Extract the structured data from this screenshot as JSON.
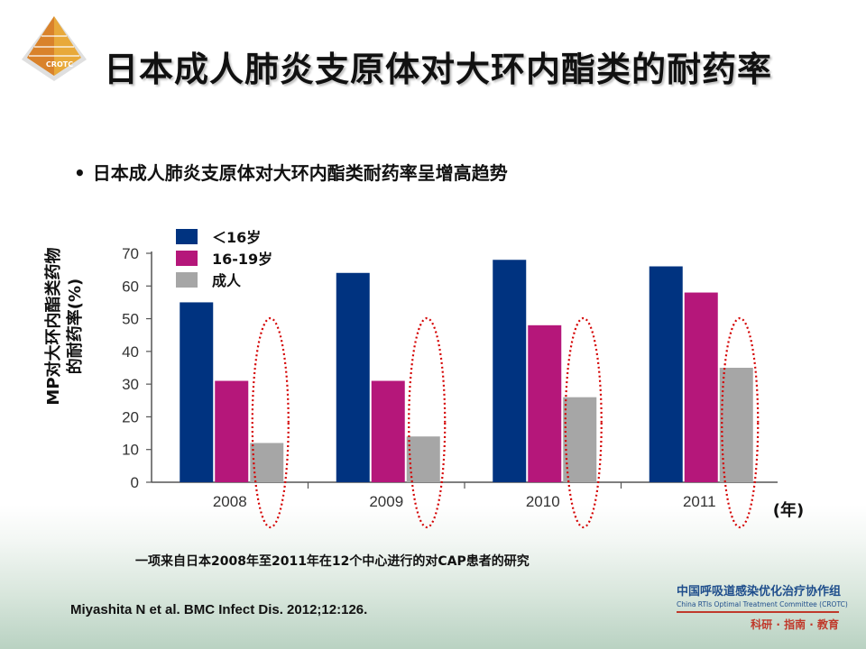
{
  "logo": {
    "text": "CROTC",
    "colors": [
      "#d9822b",
      "#e8a93a",
      "#8a6d3b",
      "#c9c9c9"
    ]
  },
  "title": "日本成人肺炎支原体对大环内酯类的耐药率",
  "bullet": {
    "symbol": "•",
    "text": "日本成人肺炎支原体对大环内酯类耐药率呈增高趋势"
  },
  "study_note": "一项来自日本2008年至2011年在12个中心进行的对CAP患者的研究",
  "citation": "Miyashita N  et al. BMC Infect Dis. 2012;12:126.",
  "org": {
    "name_cn": "中国呼吸道感染优化治疗协作组",
    "name_en": "China RTIs Optimal Treatment Committee (CROTC)",
    "motto": "科研 · 指南 · 教育"
  },
  "chart_data": {
    "type": "bar",
    "categories": [
      "2008",
      "2009",
      "2010",
      "2011"
    ],
    "series": [
      {
        "name": "＜16岁",
        "color": "#003380",
        "values": [
          55,
          64,
          68,
          66
        ]
      },
      {
        "name": "16-19岁",
        "color": "#b5177a",
        "values": [
          31,
          31,
          48,
          58
        ]
      },
      {
        "name": "成人",
        "color": "#a6a6a6",
        "values": [
          12,
          14,
          26,
          35
        ]
      }
    ],
    "ylabel_lines": [
      "MP对大环内酯类药物",
      "的耐药率(%)"
    ],
    "xlabel": "(年)",
    "ylim": [
      0,
      70
    ],
    "yticks": [
      0,
      10,
      20,
      30,
      40,
      50,
      60,
      70
    ],
    "highlight": {
      "series": "成人",
      "style": "red dotted ellipse",
      "color": "#d40000"
    },
    "legend_position": "top-left",
    "grid": false
  }
}
